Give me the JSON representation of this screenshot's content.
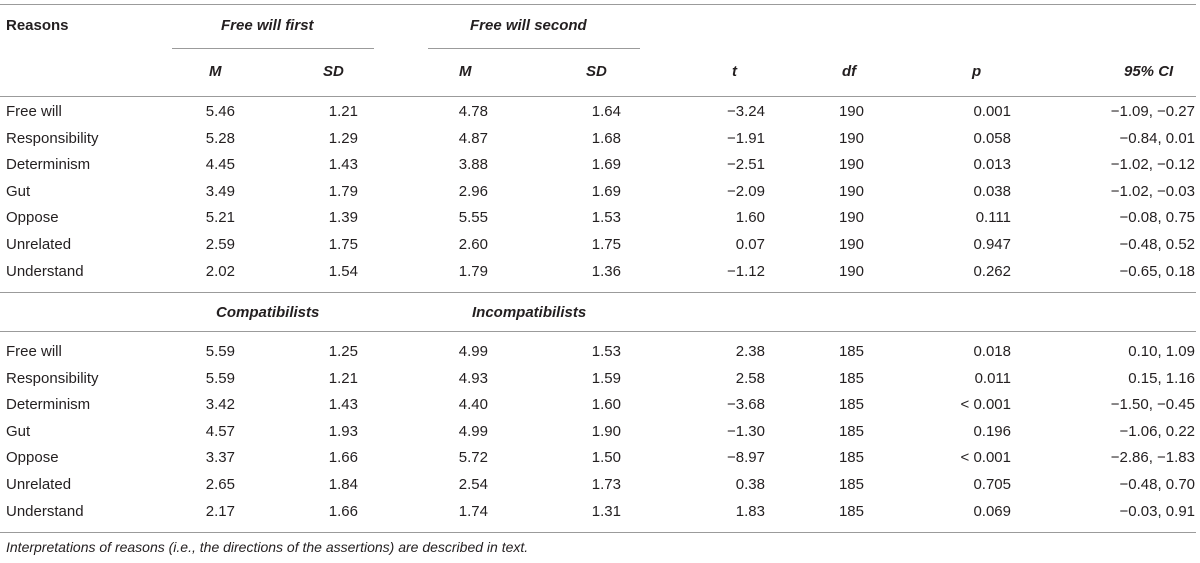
{
  "header": {
    "reasons": "Reasons",
    "group1": "Free will first",
    "group2": "Free will second",
    "m1": "M",
    "sd1": "SD",
    "m2": "M",
    "sd2": "SD",
    "t": "t",
    "df": "df",
    "p": "p",
    "ci": "95% CI"
  },
  "section1": {
    "rows": [
      {
        "label": "Free will",
        "m1": "5.46",
        "sd1": "1.21",
        "m2": "4.78",
        "sd2": "1.64",
        "t": "−3.24",
        "df": "190",
        "p": "0.001",
        "ci": "−1.09, −0.27"
      },
      {
        "label": "Responsibility",
        "m1": "5.28",
        "sd1": "1.29",
        "m2": "4.87",
        "sd2": "1.68",
        "t": "−1.91",
        "df": "190",
        "p": "0.058",
        "ci": "−0.84, 0.01"
      },
      {
        "label": "Determinism",
        "m1": "4.45",
        "sd1": "1.43",
        "m2": "3.88",
        "sd2": "1.69",
        "t": "−2.51",
        "df": "190",
        "p": "0.013",
        "ci": "−1.02, −0.12"
      },
      {
        "label": "Gut",
        "m1": "3.49",
        "sd1": "1.79",
        "m2": "2.96",
        "sd2": "1.69",
        "t": "−2.09",
        "df": "190",
        "p": "0.038",
        "ci": "−1.02, −0.03"
      },
      {
        "label": "Oppose",
        "m1": "5.21",
        "sd1": "1.39",
        "m2": "5.55",
        "sd2": "1.53",
        "t": "1.60",
        "df": "190",
        "p": "0.111",
        "ci": "−0.08, 0.75"
      },
      {
        "label": "Unrelated",
        "m1": "2.59",
        "sd1": "1.75",
        "m2": "2.60",
        "sd2": "1.75",
        "t": "0.07",
        "df": "190",
        "p": "0.947",
        "ci": "−0.48, 0.52"
      },
      {
        "label": "Understand",
        "m1": "2.02",
        "sd1": "1.54",
        "m2": "1.79",
        "sd2": "1.36",
        "t": "−1.12",
        "df": "190",
        "p": "0.262",
        "ci": "−0.65, 0.18"
      }
    ]
  },
  "section2": {
    "group1": "Compatibilists",
    "group2": "Incompatibilists",
    "rows": [
      {
        "label": "Free will",
        "m1": "5.59",
        "sd1": "1.25",
        "m2": "4.99",
        "sd2": "1.53",
        "t": "2.38",
        "df": "185",
        "p": "0.018",
        "ci": "0.10, 1.09"
      },
      {
        "label": "Responsibility",
        "m1": "5.59",
        "sd1": "1.21",
        "m2": "4.93",
        "sd2": "1.59",
        "t": "2.58",
        "df": "185",
        "p": "0.011",
        "ci": "0.15, 1.16"
      },
      {
        "label": "Determinism",
        "m1": "3.42",
        "sd1": "1.43",
        "m2": "4.40",
        "sd2": "1.60",
        "t": "−3.68",
        "df": "185",
        "p": "< 0.001",
        "ci": "−1.50, −0.45"
      },
      {
        "label": "Gut",
        "m1": "4.57",
        "sd1": "1.93",
        "m2": "4.99",
        "sd2": "1.90",
        "t": "−1.30",
        "df": "185",
        "p": "0.196",
        "ci": "−1.06, 0.22"
      },
      {
        "label": "Oppose",
        "m1": "3.37",
        "sd1": "1.66",
        "m2": "5.72",
        "sd2": "1.50",
        "t": "−8.97",
        "df": "185",
        "p": "< 0.001",
        "ci": "−2.86, −1.83"
      },
      {
        "label": "Unrelated",
        "m1": "2.65",
        "sd1": "1.84",
        "m2": "2.54",
        "sd2": "1.73",
        "t": "0.38",
        "df": "185",
        "p": "0.705",
        "ci": "−0.48, 0.70"
      },
      {
        "label": "Understand",
        "m1": "2.17",
        "sd1": "1.66",
        "m2": "1.74",
        "sd2": "1.31",
        "t": "1.83",
        "df": "185",
        "p": "0.069",
        "ci": "−0.03, 0.91"
      }
    ]
  },
  "note": "Interpretations of reasons (i.e., the directions of the assertions) are described in text."
}
